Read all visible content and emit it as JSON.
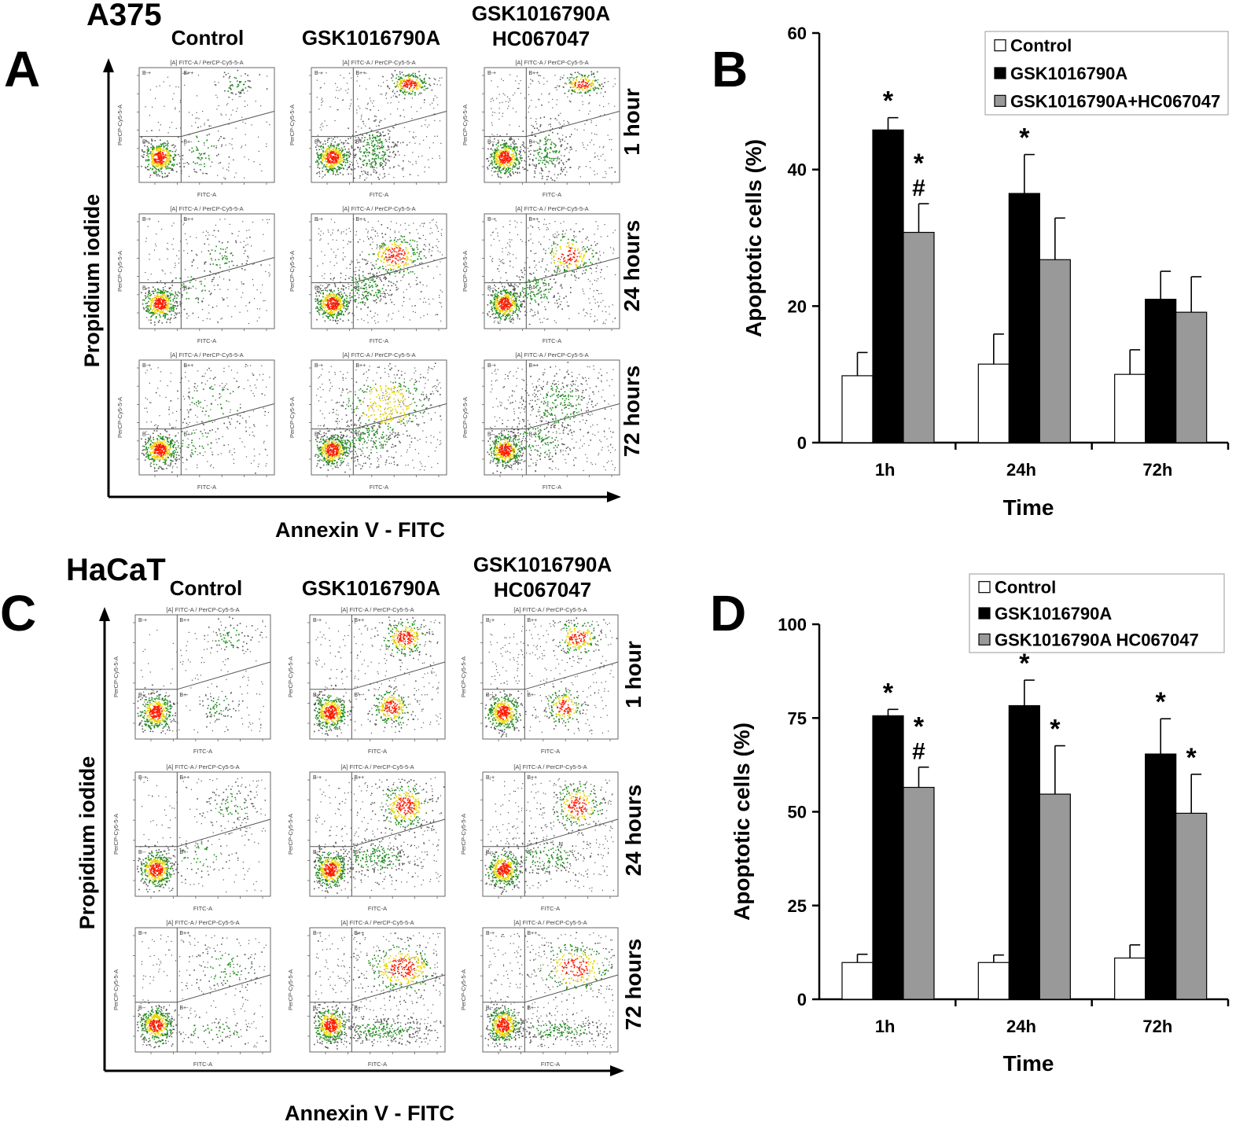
{
  "panels": {
    "A": {
      "letter": "A",
      "cell_line": "A375",
      "columns": [
        "Control",
        "GSK1016790A",
        "GSK1016790A",
        "HC067047"
      ],
      "rows": [
        "1 hour",
        "24 hours",
        "72 hours"
      ],
      "x_axis_label": "Annexin V - FITC",
      "y_axis_label": "Propidium iodide",
      "plot_header": "[A] FITC-A / PerCP-Cy5-5-A",
      "plot_xlabel": "FITC-A",
      "plot_ylabel": "PerCP-Cy5-5-A",
      "quadrants": [
        "B-+",
        "B++",
        "B--",
        "B+-"
      ]
    },
    "C": {
      "letter": "C",
      "cell_line": "HaCaT",
      "columns": [
        "Control",
        "GSK1016790A",
        "GSK1016790A",
        "HC067047"
      ],
      "rows": [
        "1 hour",
        "24 hours",
        "72 hours"
      ],
      "x_axis_label": "Annexin V - FITC",
      "y_axis_label": "Propidium iodide",
      "plot_header": "[A] FITC-A / PerCP-Cy5-5-A",
      "plot_xlabel": "FITC-A",
      "plot_ylabel": "PerCP-Cy5-5-A",
      "quadrants": [
        "B-+",
        "B++",
        "B--",
        "B+-"
      ]
    }
  },
  "colors": {
    "control": "#ffffff",
    "gsk": "#000000",
    "combo": "#999999",
    "density_high": "#ff1a00",
    "density_mid": "#e8d400",
    "density_low": "#1f8a1f",
    "sparse": "#555555"
  },
  "chart_data": [
    {
      "panel": "B",
      "type": "bar",
      "categories": [
        "1h",
        "24h",
        "72h"
      ],
      "series": [
        {
          "name": "Control",
          "values": [
            9.8,
            11.5,
            10
          ],
          "errors": [
            3.4,
            4.4,
            3.6
          ],
          "annotations": [
            "",
            "",
            ""
          ]
        },
        {
          "name": "GSK1016790A",
          "values": [
            45.8,
            36.5,
            21
          ],
          "errors": [
            1.8,
            5.7,
            4.1
          ],
          "annotations": [
            "*",
            "*",
            ""
          ]
        },
        {
          "name": "GSK1016790A+HC067047",
          "values": [
            30.8,
            26.8,
            19.1
          ],
          "errors": [
            4.2,
            6.1,
            5.2
          ],
          "annotations": [
            "*\n#",
            "",
            ""
          ]
        }
      ],
      "xlabel": "Time",
      "ylabel": "Apoptotic cells (%)",
      "ylim": [
        0,
        60
      ],
      "yticks": [
        0,
        20,
        40,
        60
      ],
      "legend": "top-right"
    },
    {
      "panel": "D",
      "type": "bar",
      "categories": [
        "1h",
        "24h",
        "72h"
      ],
      "series": [
        {
          "name": "Control",
          "values": [
            9.8,
            9.8,
            11
          ],
          "errors": [
            2.2,
            2,
            3.5
          ],
          "annotations": [
            "",
            "",
            ""
          ]
        },
        {
          "name": "GSK1016790A",
          "values": [
            75.6,
            78.3,
            65.4
          ],
          "errors": [
            1.7,
            6.8,
            9.4
          ],
          "annotations": [
            "*",
            "*",
            "*"
          ]
        },
        {
          "name": "GSK1016790A HC067047",
          "values": [
            56.5,
            54.7,
            49.6
          ],
          "errors": [
            5.4,
            12.9,
            10.4
          ],
          "annotations": [
            "*\n#",
            "*",
            "*"
          ]
        }
      ],
      "xlabel": "Time",
      "ylabel": "Apoptotic cells (%)",
      "ylim": [
        0,
        100
      ],
      "yticks": [
        0,
        25,
        50,
        75,
        100
      ],
      "legend": "top-right"
    }
  ]
}
